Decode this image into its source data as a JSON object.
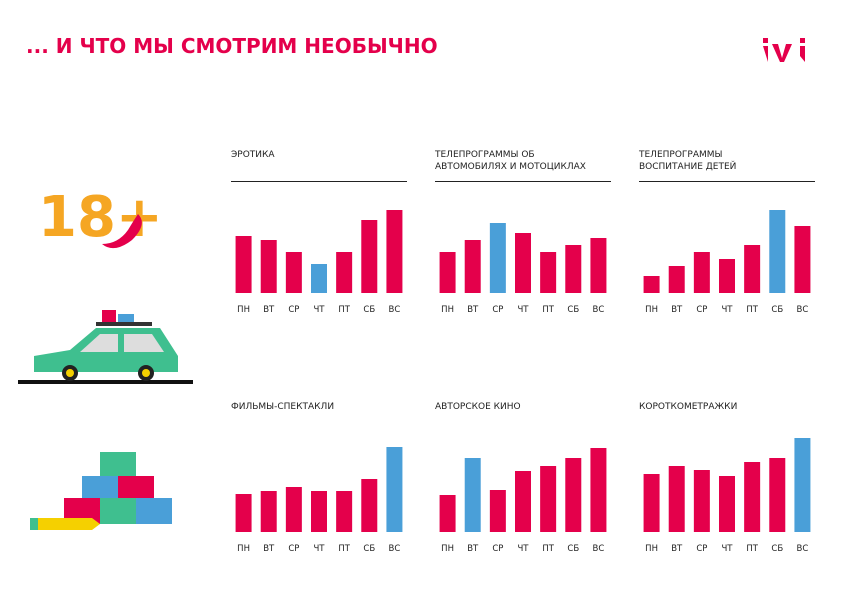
{
  "title": "... И ЧТО МЫ СМОТРИМ НЕОБЫЧНО",
  "badge": "18+",
  "chart_data": [
    {
      "type": "bar",
      "title": [
        "ЭРОТИКА"
      ],
      "categories": [
        "ПН",
        "ВТ",
        "СР",
        "ЧТ",
        "ПТ",
        "СБ",
        "ВС"
      ],
      "values": [
        57,
        53,
        41,
        29,
        41,
        73,
        83
      ],
      "colors": [
        "#e4004b",
        "#e4004b",
        "#e4004b",
        "#4a9fd8",
        "#e4004b",
        "#e4004b",
        "#e4004b"
      ]
    },
    {
      "type": "bar",
      "title": [
        "ТЕЛЕПРОГРАММЫ ОБ",
        "АВТОМОБИЛЯХ И МОТОЦИКЛАХ"
      ],
      "categories": [
        "ПН",
        "ВТ",
        "СР",
        "ЧТ",
        "ПТ",
        "СБ",
        "ВС"
      ],
      "values": [
        41,
        53,
        70,
        60,
        41,
        48,
        55
      ],
      "colors": [
        "#e4004b",
        "#e4004b",
        "#4a9fd8",
        "#e4004b",
        "#e4004b",
        "#e4004b",
        "#e4004b"
      ]
    },
    {
      "type": "bar",
      "title": [
        "ТЕЛЕПРОГРАММЫ",
        "ВОСПИТАНИЕ ДЕТЕЙ"
      ],
      "categories": [
        "ПН",
        "ВТ",
        "СР",
        "ЧТ",
        "ПТ",
        "СБ",
        "ВС"
      ],
      "values": [
        17,
        27,
        41,
        34,
        48,
        83,
        67
      ],
      "colors": [
        "#e4004b",
        "#e4004b",
        "#e4004b",
        "#e4004b",
        "#e4004b",
        "#4a9fd8",
        "#e4004b"
      ]
    },
    {
      "type": "bar",
      "title": [
        "ФИЛЬМЫ-СПЕКТАКЛИ"
      ],
      "categories": [
        "ПН",
        "ВТ",
        "СР",
        "ЧТ",
        "ПТ",
        "СБ",
        "ВС"
      ],
      "values": [
        38,
        41,
        45,
        41,
        41,
        53,
        85
      ],
      "colors": [
        "#e4004b",
        "#e4004b",
        "#e4004b",
        "#e4004b",
        "#e4004b",
        "#e4004b",
        "#4a9fd8"
      ]
    },
    {
      "type": "bar",
      "title": [
        "АВТОРСКОЕ КИНО"
      ],
      "categories": [
        "ПН",
        "ВТ",
        "СР",
        "ЧТ",
        "ПТ",
        "СБ",
        "ВС"
      ],
      "values": [
        37,
        74,
        42,
        61,
        66,
        74,
        84
      ],
      "colors": [
        "#e4004b",
        "#4a9fd8",
        "#e4004b",
        "#e4004b",
        "#e4004b",
        "#e4004b",
        "#e4004b"
      ]
    },
    {
      "type": "bar",
      "title": [
        "КОРОТКОМЕТРАЖКИ"
      ],
      "categories": [
        "ПН",
        "ВТ",
        "СР",
        "ЧТ",
        "ПТ",
        "СБ",
        "ВС"
      ],
      "values": [
        58,
        66,
        62,
        56,
        70,
        74,
        94
      ],
      "colors": [
        "#e4004b",
        "#e4004b",
        "#e4004b",
        "#e4004b",
        "#e4004b",
        "#e4004b",
        "#4a9fd8"
      ]
    }
  ]
}
